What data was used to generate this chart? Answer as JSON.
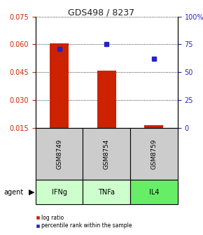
{
  "title": "GDS498 / 8237",
  "samples": [
    "GSM8749",
    "GSM8754",
    "GSM8759"
  ],
  "agents": [
    "IFNg",
    "TNFa",
    "IL4"
  ],
  "log_ratios": [
    0.0605,
    0.046,
    0.0165
  ],
  "percentile_ranks": [
    71,
    75,
    62
  ],
  "left_ylim": [
    0.015,
    0.075
  ],
  "left_yticks": [
    0.015,
    0.03,
    0.045,
    0.06,
    0.075
  ],
  "right_ylim": [
    0,
    100
  ],
  "right_yticks": [
    0,
    25,
    50,
    75,
    100
  ],
  "right_yticklabels": [
    "0",
    "25",
    "50",
    "75",
    "100%"
  ],
  "bar_color": "#cc2200",
  "dot_color": "#2222cc",
  "left_tick_color": "#cc2200",
  "right_tick_color": "#2222cc",
  "title_color": "#222222",
  "sample_box_color": "#cccccc",
  "agent_box_colors": [
    "#ccffcc",
    "#ccffcc",
    "#66ee66"
  ],
  "bar_width": 0.4,
  "baseline": 0.015
}
